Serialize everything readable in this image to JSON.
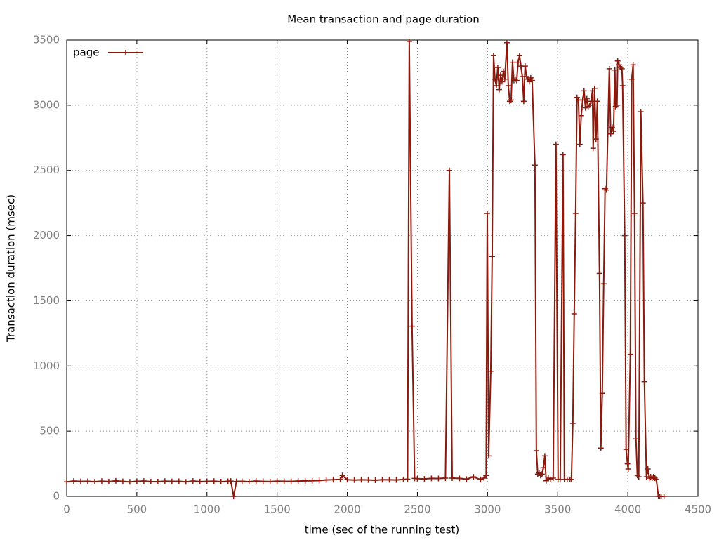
{
  "chart_data": {
    "type": "line",
    "title": "Mean transaction and page duration",
    "x_label": "time (sec of the running test)",
    "y_label": "Transaction duration (msec)",
    "xlim": [
      0,
      4500
    ],
    "xticks": [
      0,
      500,
      1000,
      1500,
      2000,
      2500,
      3000,
      3500,
      4000,
      4500
    ],
    "ylim": [
      0,
      3500
    ],
    "yticks": [
      0,
      500,
      1000,
      1500,
      2000,
      2500,
      3000,
      3500
    ],
    "grid": true,
    "legend": "top-left",
    "x": [
      0,
      50,
      100,
      150,
      200,
      250,
      300,
      350,
      400,
      450,
      500,
      550,
      600,
      650,
      700,
      750,
      800,
      850,
      900,
      950,
      1000,
      1050,
      1100,
      1150,
      1170,
      1190,
      1210,
      1250,
      1300,
      1350,
      1400,
      1450,
      1500,
      1550,
      1600,
      1650,
      1700,
      1750,
      1800,
      1850,
      1900,
      1950,
      1965,
      2000,
      2050,
      2100,
      2150,
      2200,
      2250,
      2300,
      2350,
      2400,
      2430,
      2442,
      2462,
      2480,
      2500,
      2550,
      2600,
      2650,
      2700,
      2728,
      2748,
      2800,
      2850,
      2900,
      2950,
      2975,
      2990,
      2998,
      3008,
      3023,
      3033,
      3043,
      3053,
      3063,
      3073,
      3083,
      3093,
      3103,
      3113,
      3123,
      3138,
      3148,
      3158,
      3168,
      3178,
      3188,
      3198,
      3208,
      3218,
      3228,
      3238,
      3248,
      3258,
      3268,
      3278,
      3288,
      3298,
      3308,
      3318,
      3338,
      3348,
      3358,
      3368,
      3378,
      3388,
      3398,
      3408,
      3418,
      3433,
      3448,
      3468,
      3488,
      3503,
      3518,
      3538,
      3548,
      3568,
      3588,
      3598,
      3608,
      3618,
      3628,
      3638,
      3648,
      3658,
      3668,
      3678,
      3688,
      3698,
      3708,
      3718,
      3728,
      3738,
      3748,
      3753,
      3763,
      3773,
      3783,
      3798,
      3808,
      3818,
      3828,
      3838,
      3848,
      3868,
      3878,
      3888,
      3898,
      3908,
      3913,
      3923,
      3928,
      3938,
      3948,
      3958,
      3963,
      3978,
      3988,
      3998,
      4003,
      4018,
      4028,
      4038,
      4048,
      4058,
      4068,
      4078,
      4093,
      4108,
      4118,
      4133,
      4143,
      4153,
      4163,
      4173,
      4183,
      4193,
      4203,
      4218,
      4228,
      4238,
      4258
    ],
    "series": [
      {
        "name": "page",
        "color": "#8b1a0e",
        "values": [
          112,
          118,
          115,
          116,
          113,
          117,
          114,
          119,
          115,
          112,
          116,
          118,
          114,
          113,
          117,
          115,
          116,
          112,
          118,
          114,
          115,
          117,
          113,
          116,
          118,
          0,
          115,
          116,
          113,
          118,
          115,
          114,
          117,
          116,
          115,
          118,
          119,
          120,
          122,
          126,
          128,
          130,
          160,
          128,
          125,
          127,
          126,
          124,
          128,
          127,
          126,
          130,
          132,
          3490,
          1305,
          138,
          136,
          134,
          138,
          137,
          140,
          2500,
          140,
          138,
          132,
          150,
          128,
          140,
          160,
          2170,
          310,
          960,
          1840,
          3380,
          3200,
          3150,
          3290,
          3120,
          3230,
          3180,
          3260,
          3200,
          3480,
          3150,
          3030,
          3040,
          3330,
          3190,
          3200,
          3190,
          3330,
          3380,
          3300,
          3220,
          3030,
          3300,
          3220,
          3200,
          3180,
          3210,
          3190,
          2540,
          350,
          170,
          180,
          160,
          170,
          220,
          310,
          120,
          140,
          130,
          140,
          2700,
          130,
          130,
          2620,
          130,
          130,
          130,
          130,
          560,
          1400,
          2170,
          3060,
          3040,
          2700,
          2920,
          3040,
          3110,
          2980,
          3050,
          2990,
          3000,
          3030,
          3110,
          2670,
          3130,
          2740,
          3030,
          1710,
          370,
          790,
          1630,
          2360,
          2350,
          3280,
          2780,
          2830,
          2800,
          3270,
          2990,
          3000,
          3340,
          3310,
          3290,
          3280,
          3150,
          2000,
          360,
          250,
          210,
          1090,
          3200,
          3310,
          2170,
          440,
          160,
          150,
          2950,
          2250,
          880,
          150,
          210,
          140,
          150,
          140,
          150,
          140,
          130,
          0,
          0,
          0,
          0
        ]
      }
    ]
  }
}
